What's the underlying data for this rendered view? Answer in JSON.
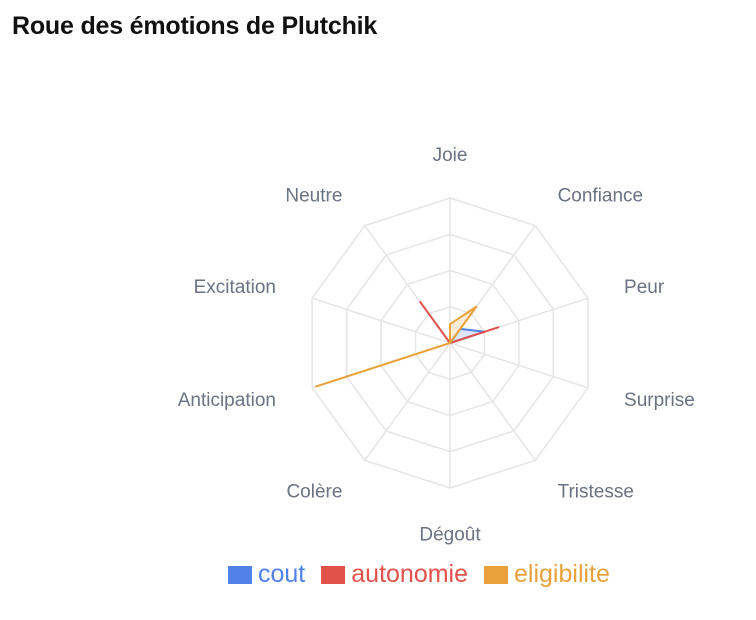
{
  "title": "Roue des émotions de Plutchik",
  "chart_data": {
    "type": "radar",
    "title": "Roue des émotions de Plutchik",
    "axes": [
      "Joie",
      "Confiance",
      "Peur",
      "Surprise",
      "Tristesse",
      "Dégoût",
      "Colère",
      "Anticipation",
      "Excitation",
      "Neutre"
    ],
    "rlim": [
      0,
      1
    ],
    "grid_levels": 4,
    "grid": true,
    "legend_position": "bottom",
    "series": [
      {
        "name": "cout",
        "color": "#4f81e8",
        "values": [
          0.0,
          0.12,
          0.25,
          0.0,
          0.0,
          0.0,
          0.0,
          0.0,
          0.0,
          0.0
        ]
      },
      {
        "name": "autonomie",
        "color": "#e0514b",
        "values": [
          0.0,
          0.0,
          0.35,
          0.0,
          0.0,
          0.0,
          0.0,
          0.0,
          0.0,
          0.35
        ]
      },
      {
        "name": "eligibilite",
        "color": "#e9a23b",
        "values": [
          0.13,
          0.31,
          0.0,
          0.0,
          0.0,
          0.0,
          0.0,
          0.97,
          0.0,
          0.0
        ]
      }
    ]
  }
}
